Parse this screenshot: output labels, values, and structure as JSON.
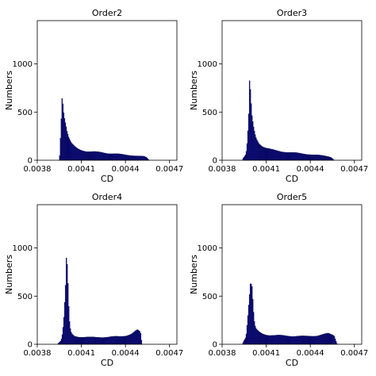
{
  "chart_data": [
    {
      "type": "bar",
      "title": "Order2",
      "xlabel": "CD",
      "ylabel": "Numbers",
      "xlim": [
        0.0038,
        0.00475
      ],
      "ylim": [
        0,
        1450
      ],
      "xticks": [
        "0.0038",
        "0.0041",
        "0.0044",
        "0.0047"
      ],
      "yticks": [
        "0",
        "500",
        "1000"
      ],
      "bar_color": "#0b0b8c",
      "histogram": {
        "x": [
          0.00395,
          0.00396,
          0.003965,
          0.00397,
          0.003975,
          0.00398,
          0.00399,
          0.004,
          0.00401,
          0.00402,
          0.00403,
          0.00405,
          0.00407,
          0.0041,
          0.00413,
          0.00416,
          0.0042,
          0.00424,
          0.00428,
          0.00432,
          0.00436,
          0.0044,
          0.00444,
          0.00448,
          0.00452,
          0.00454,
          0.00456
        ],
        "y": [
          50,
          400,
          690,
          660,
          560,
          480,
          390,
          300,
          240,
          200,
          170,
          140,
          120,
          105,
          95,
          90,
          85,
          80,
          72,
          68,
          62,
          55,
          50,
          45,
          40,
          30,
          0
        ]
      }
    },
    {
      "type": "bar",
      "title": "Order3",
      "xlabel": "CD",
      "ylabel": "Numbers",
      "xlim": [
        0.0038,
        0.00475
      ],
      "ylim": [
        0,
        1450
      ],
      "xticks": [
        "0.0038",
        "0.0041",
        "0.0044",
        "0.0047"
      ],
      "yticks": [
        "0",
        "500",
        "1000"
      ],
      "bar_color": "#0b0b8c",
      "histogram": {
        "x": [
          0.00394,
          0.00396,
          0.00397,
          0.00398,
          0.003985,
          0.00399,
          0.003995,
          0.004,
          0.00401,
          0.00402,
          0.00403,
          0.00405,
          0.00407,
          0.0041,
          0.00413,
          0.00416,
          0.0042,
          0.00424,
          0.00428,
          0.00432,
          0.00436,
          0.0044,
          0.00444,
          0.00448,
          0.00452,
          0.00454,
          0.00456
        ],
        "y": [
          20,
          60,
          200,
          500,
          850,
          680,
          560,
          450,
          350,
          280,
          230,
          180,
          150,
          125,
          110,
          100,
          92,
          85,
          78,
          72,
          66,
          60,
          54,
          48,
          40,
          30,
          0
        ]
      }
    },
    {
      "type": "bar",
      "title": "Order4",
      "xlabel": "CD",
      "ylabel": "Numbers",
      "xlim": [
        0.0038,
        0.00475
      ],
      "ylim": [
        0,
        1450
      ],
      "xticks": [
        "0.0038",
        "0.0041",
        "0.0044",
        "0.0047"
      ],
      "yticks": [
        "0",
        "500",
        "1000"
      ],
      "bar_color": "#0b0b8c",
      "histogram": {
        "x": [
          0.00394,
          0.00396,
          0.00397,
          0.00398,
          0.00399,
          0.003995,
          0.004,
          0.004005,
          0.00401,
          0.004015,
          0.00402,
          0.00403,
          0.00405,
          0.00408,
          0.0041,
          0.00413,
          0.00416,
          0.0042,
          0.00424,
          0.00428,
          0.00432,
          0.00436,
          0.0044,
          0.00442,
          0.00444,
          0.00446,
          0.00448,
          0.0045,
          0.00451
        ],
        "y": [
          10,
          40,
          120,
          300,
          600,
          850,
          800,
          640,
          420,
          260,
          170,
          110,
          85,
          78,
          76,
          74,
          72,
          72,
          74,
          76,
          78,
          80,
          90,
          100,
          110,
          130,
          145,
          120,
          0
        ]
      }
    },
    {
      "type": "bar",
      "title": "Order5",
      "xlabel": "CD",
      "ylabel": "Numbers",
      "xlim": [
        0.0038,
        0.00475
      ],
      "ylim": [
        0,
        1450
      ],
      "xticks": [
        "0.0038",
        "0.0041",
        "0.0044",
        "0.0047"
      ],
      "yticks": [
        "0",
        "500",
        "1000"
      ],
      "bar_color": "#0b0b8c",
      "histogram": {
        "x": [
          0.00394,
          0.00396,
          0.00397,
          0.00398,
          0.00399,
          0.004,
          0.004005,
          0.00401,
          0.004015,
          0.00402,
          0.00403,
          0.00405,
          0.00407,
          0.0041,
          0.00413,
          0.00416,
          0.0042,
          0.00424,
          0.00428,
          0.00432,
          0.00436,
          0.0044,
          0.00444,
          0.00448,
          0.00452,
          0.00456,
          0.00458
        ],
        "y": [
          20,
          80,
          250,
          450,
          640,
          600,
          480,
          350,
          250,
          190,
          150,
          125,
          110,
          100,
          95,
          92,
          90,
          88,
          86,
          84,
          82,
          85,
          90,
          100,
          110,
          90,
          0
        ]
      }
    }
  ]
}
